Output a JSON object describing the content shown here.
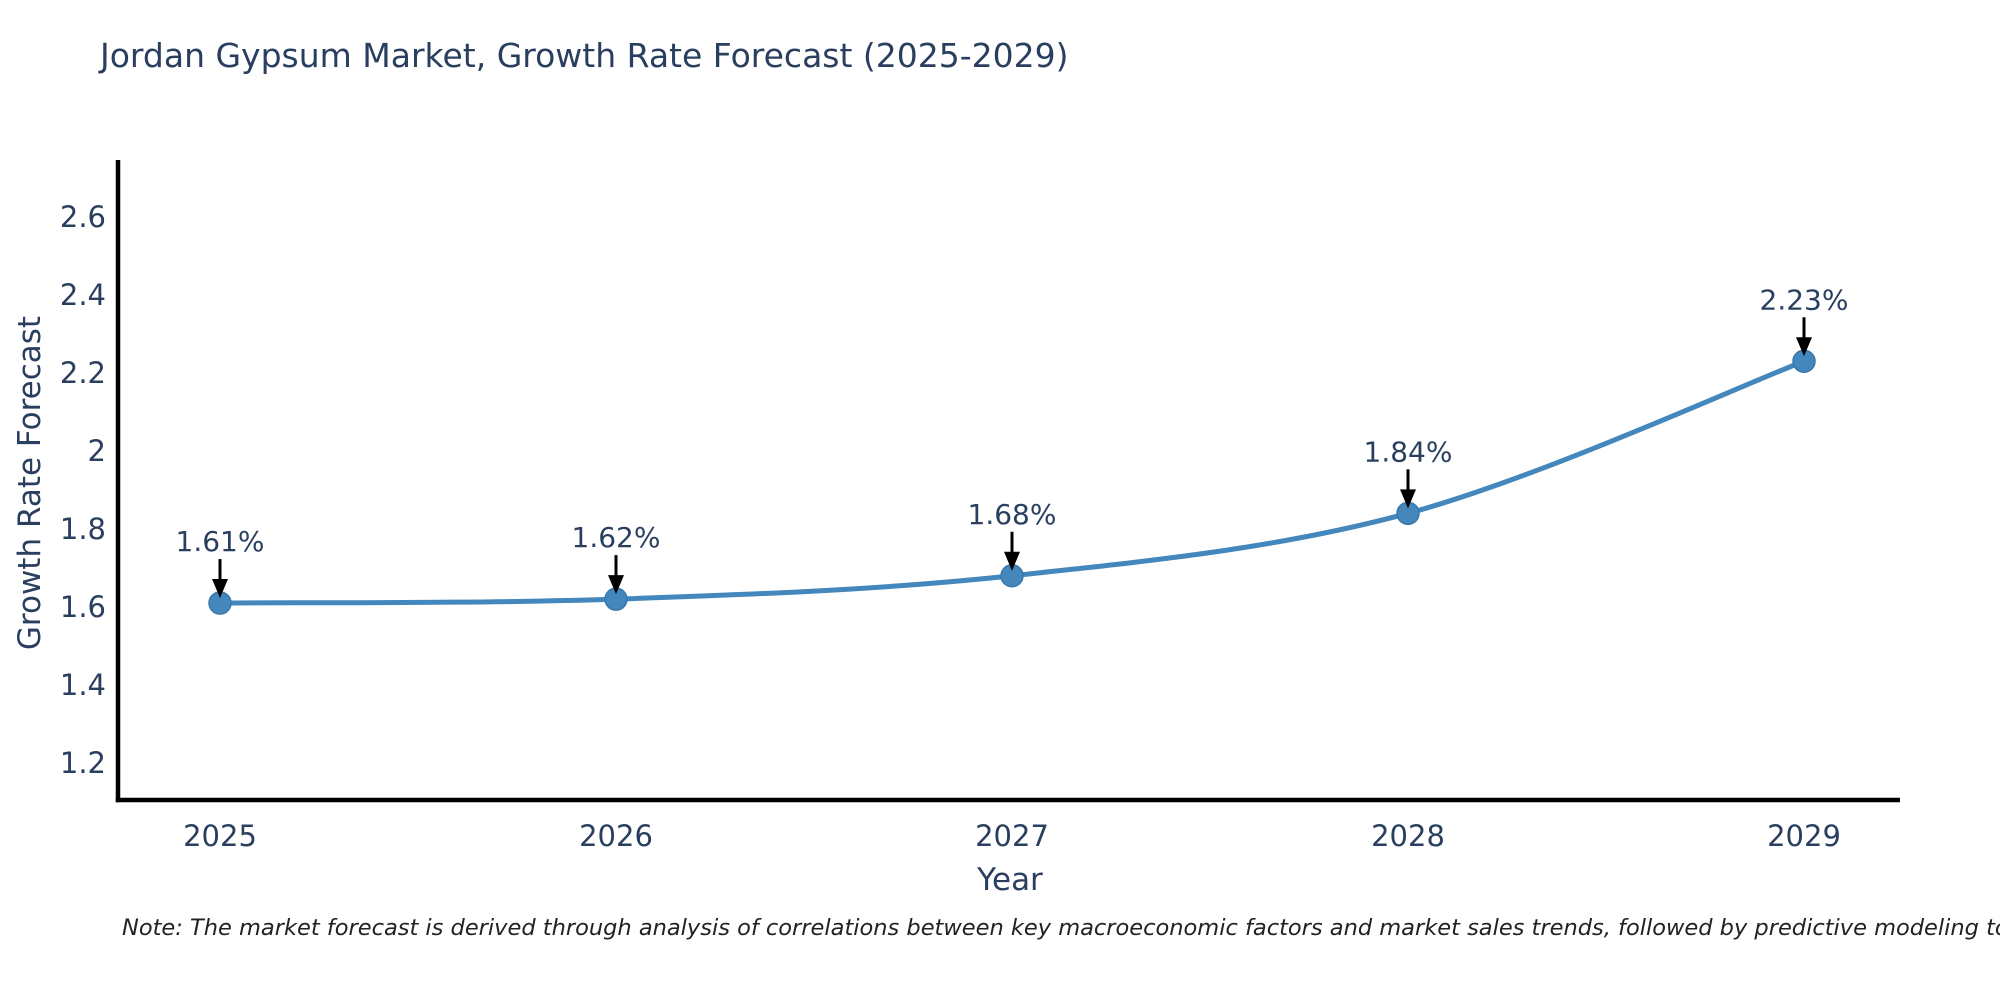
{
  "chart": {
    "title": "Jordan Gypsum Market, Growth Rate Forecast (2025-2029)",
    "note": "Note: The market forecast is derived through analysis of correlations between key macroeconomic factors and market sales trends, followed by predictive modeling to project future sales"
  },
  "chart_data": {
    "type": "line",
    "title": "Jordan Gypsum Market, Growth Rate Forecast (2025-2029)",
    "xlabel": "Year",
    "ylabel": "Growth Rate Forecast",
    "categories": [
      "2025",
      "2026",
      "2027",
      "2028",
      "2029"
    ],
    "values": [
      1.61,
      1.62,
      1.68,
      1.84,
      2.23
    ],
    "point_labels": [
      "1.61%",
      "1.62%",
      "1.68%",
      "1.84%",
      "2.23%"
    ],
    "y_ticks": [
      "1.2",
      "1.4",
      "1.6",
      "1.8",
      "2",
      "2.2",
      "2.4",
      "2.6"
    ],
    "y_tick_values": [
      1.2,
      1.4,
      1.6,
      1.8,
      2.0,
      2.2,
      2.4,
      2.6
    ],
    "ylim": [
      1.105,
      2.745
    ],
    "grid": false,
    "legend_position": "none",
    "line_shape": "spline",
    "colors": {
      "line": "#4387bc",
      "marker": "#4387bc",
      "marker_edge": "#3a78ab",
      "arrow": "#000000",
      "text": "#2a3f5f",
      "axis": "#000000"
    }
  }
}
